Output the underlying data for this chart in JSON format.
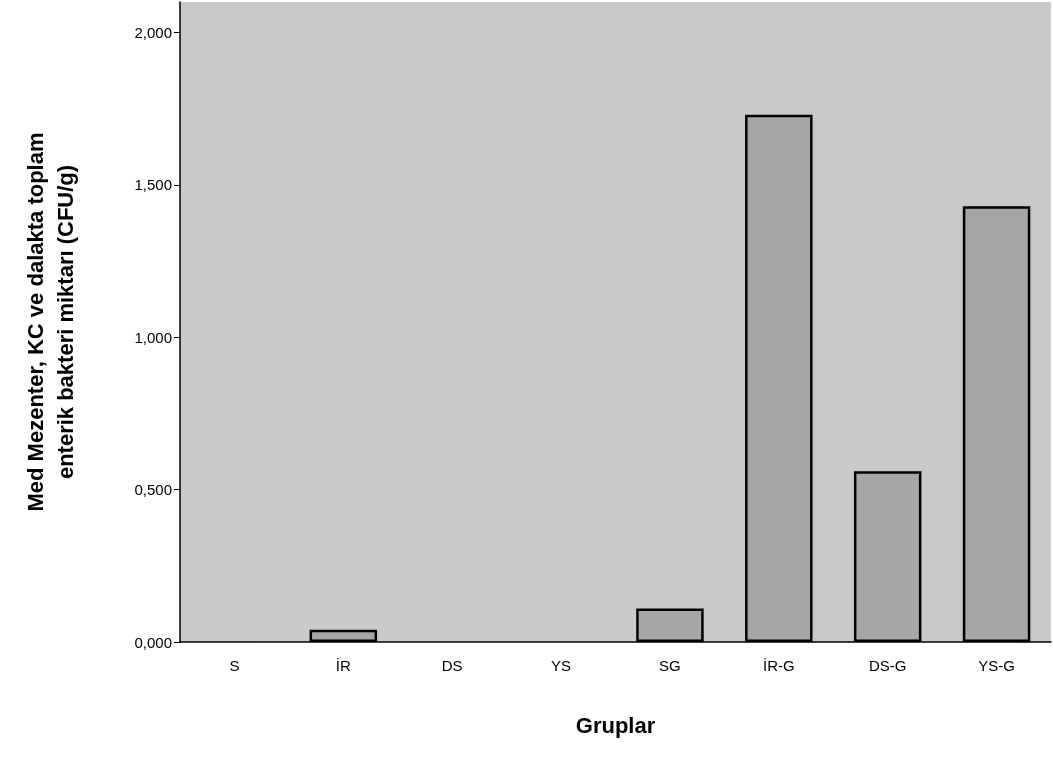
{
  "chart_data": {
    "type": "bar",
    "xlabel": "Gruplar",
    "ylabel": "Med Mezenter, KC ve dalakta toplam\nenterik bakteri miktarı (CFU/g)",
    "categories": [
      "S",
      "İR",
      "DS",
      "YS",
      "SG",
      "İR-G",
      "DS-G",
      "YS-G"
    ],
    "values": [
      0,
      0.04,
      0,
      0,
      0.11,
      1.73,
      0.56,
      1.43
    ],
    "color": "#a6a6a6",
    "ylim": [
      0,
      2.1
    ],
    "yticks": [
      {
        "value": 0,
        "label": "0,000"
      },
      {
        "value": 0.5,
        "label": "0,500"
      },
      {
        "value": 1,
        "label": "1,000"
      },
      {
        "value": 1.5,
        "label": "1,500"
      },
      {
        "value": 2,
        "label": "2,000"
      }
    ],
    "grid": false
  }
}
